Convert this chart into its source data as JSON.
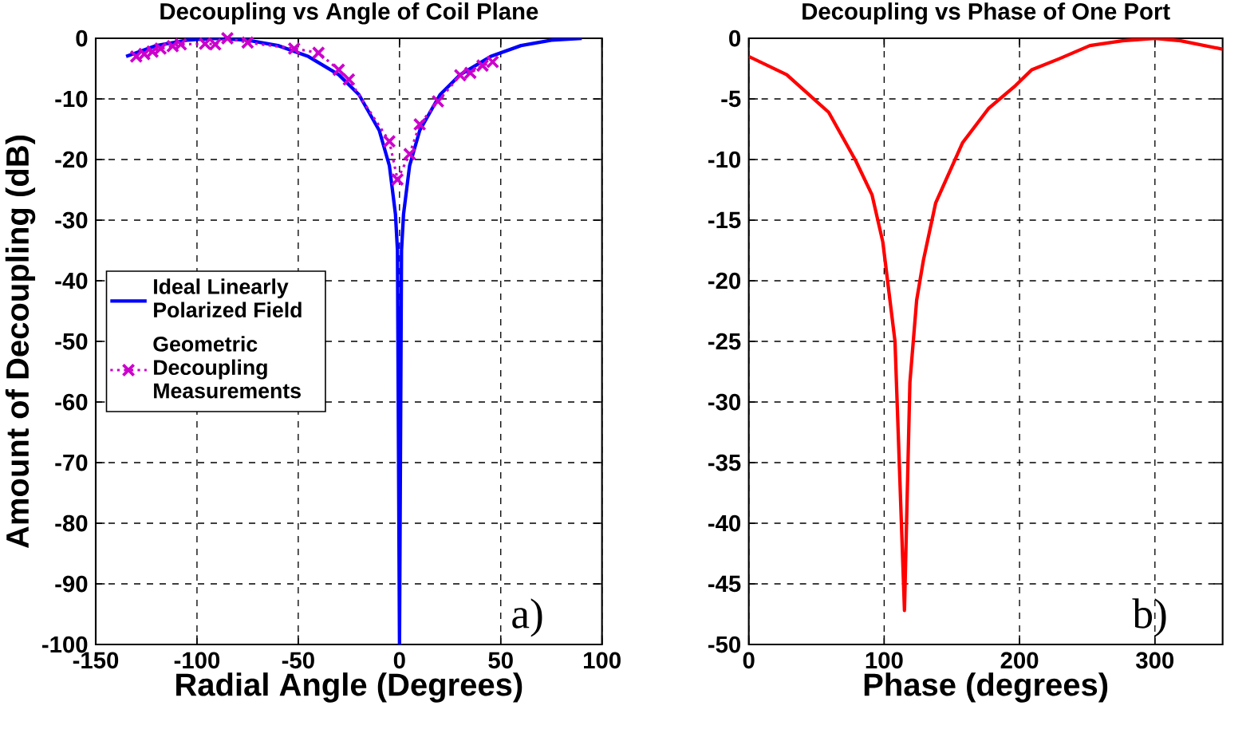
{
  "chart_data": [
    {
      "type": "line",
      "title": "Decoupling vs Angle of Coil Plane",
      "xlabel": "Radial Angle (Degrees)",
      "ylabel": "Amount of Decoupling (dB)",
      "xlim": [
        -150,
        100
      ],
      "ylim": [
        -100,
        0
      ],
      "xticks": [
        -150,
        -100,
        -50,
        0,
        50,
        100
      ],
      "yticks": [
        -100,
        -90,
        -80,
        -70,
        -60,
        -50,
        -40,
        -30,
        -20,
        -10,
        0
      ],
      "grid": true,
      "legend": "left",
      "annotations": [
        "a)"
      ],
      "series": [
        {
          "name": "Ideal Linearly Polarized Field",
          "color": "#0000ff",
          "line_style": "solid",
          "marker": "none",
          "x": [
            -135,
            -120,
            -105,
            -90,
            -75,
            -60,
            -45,
            -30,
            -20,
            -10,
            -5,
            -2,
            -1,
            0,
            1,
            2,
            5,
            10,
            20,
            30,
            45,
            60,
            75,
            90
          ],
          "values": [
            -3,
            -1.2,
            -0.3,
            0,
            -0.3,
            -1.2,
            -3,
            -6,
            -9.3,
            -15.2,
            -21,
            -29,
            -35,
            -100,
            -35,
            -29,
            -21,
            -15.2,
            -9.3,
            -6,
            -3,
            -1.2,
            -0.3,
            0
          ]
        },
        {
          "name": "Geometric Decoupling Measurements",
          "color": "#cc00cc",
          "line_style": "dotted",
          "marker": "cross",
          "x": [
            -130,
            -126,
            -122,
            -118,
            -112,
            -108,
            -96,
            -91,
            -85,
            -75,
            -52,
            -40,
            -30,
            -25,
            -5,
            -1,
            5,
            10,
            19,
            30,
            35,
            41,
            46
          ],
          "values": [
            -3.0,
            -2.6,
            -2.2,
            -1.7,
            -1.3,
            -1.0,
            -0.9,
            -1.0,
            0,
            -0.7,
            -1.7,
            -2.4,
            -5.2,
            -6.8,
            -17,
            -23.3,
            -19.1,
            -14.2,
            -10.4,
            -6.1,
            -5.7,
            -4.5,
            -3.9
          ]
        }
      ]
    },
    {
      "type": "line",
      "title": "Decoupling vs Phase of One Port",
      "xlabel": "Phase (degrees)",
      "xlim": [
        0,
        350
      ],
      "ylim": [
        -50,
        0
      ],
      "xticks": [
        0,
        100,
        200,
        300
      ],
      "yticks": [
        -50,
        -45,
        -40,
        -35,
        -30,
        -25,
        -20,
        -15,
        -10,
        -5,
        0
      ],
      "grid": true,
      "annotations": [
        "b)"
      ],
      "series": [
        {
          "color": "#ff0000",
          "line_style": "solid",
          "marker": "none",
          "x": [
            0,
            28,
            59,
            79,
            91,
            99,
            108,
            115,
            119,
            124,
            129,
            138,
            158,
            177,
            197,
            209,
            229,
            252,
            276,
            300,
            319,
            350
          ],
          "values": [
            -1.5,
            -3,
            -6.1,
            -10.1,
            -12.9,
            -16.8,
            -25,
            -47.2,
            -28.4,
            -21.6,
            -18.3,
            -13.6,
            -8.6,
            -5.8,
            -3.9,
            -2.6,
            -1.7,
            -0.6,
            -0.2,
            0,
            -0.2,
            -0.9
          ]
        }
      ]
    }
  ]
}
